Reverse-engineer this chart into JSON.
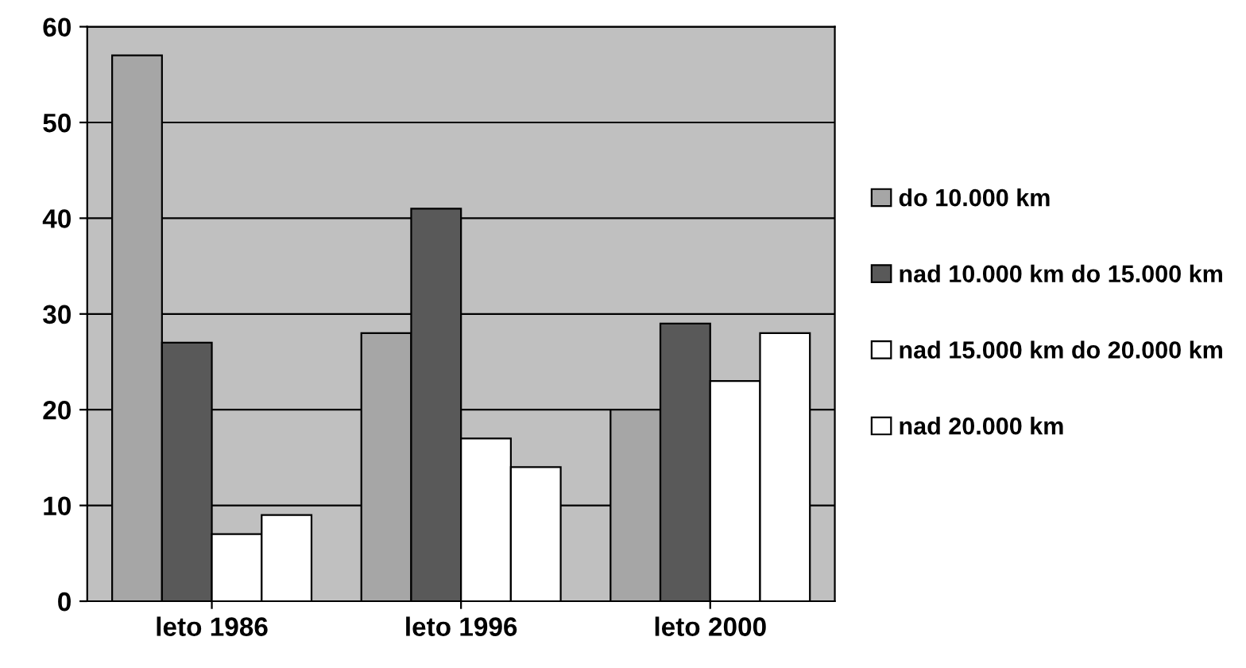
{
  "chart_data": {
    "type": "bar",
    "categories": [
      "leto 1986",
      "leto 1996",
      "leto 2000"
    ],
    "series": [
      {
        "name": "do 10.000 km",
        "color": "#a6a6a6",
        "values": [
          57,
          28,
          20
        ]
      },
      {
        "name": "nad 10.000 km do 15.000 km",
        "color": "#595959",
        "values": [
          27,
          41,
          29
        ]
      },
      {
        "name": "nad 15.000 km do 20.000 km",
        "color": "#ffffff",
        "values": [
          7,
          17,
          23
        ]
      },
      {
        "name": "nad 20.000 km",
        "color": "#ffffff",
        "values": [
          9,
          14,
          28
        ]
      }
    ],
    "ylim": [
      0,
      60
    ],
    "yticks": [
      0,
      10,
      20,
      30,
      40,
      50,
      60
    ],
    "grid": "y",
    "legend": "right"
  }
}
